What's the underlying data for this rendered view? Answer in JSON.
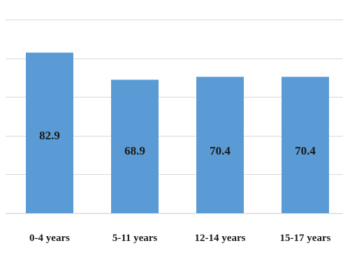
{
  "chart_data": {
    "type": "bar",
    "categories": [
      "0-4 years",
      "5-11 years",
      "12-14 years",
      "15-17 years"
    ],
    "values": [
      82.9,
      68.9,
      70.4,
      70.4
    ],
    "value_labels": [
      "82.9",
      "68.9",
      "70.4",
      "70.4"
    ],
    "ylim": [
      0,
      100
    ],
    "gridlines": [
      0,
      20,
      40,
      60,
      80,
      100
    ],
    "grid": true,
    "bar_color": "#5b9bd5",
    "title": "",
    "xlabel": "",
    "ylabel": ""
  }
}
